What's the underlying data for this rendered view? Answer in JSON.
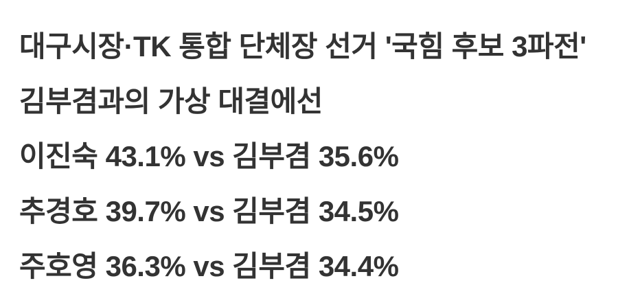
{
  "page": {
    "background_color": "#ffffff",
    "text_color": "#333333"
  },
  "document": {
    "title_line": "대구시장·TK 통합 단체장 선거 '국힘 후보 3파전'",
    "subtitle_line": "김부겸과의 가상 대결에선",
    "matchups": [
      {
        "candidate": "이진숙",
        "candidate_pct": "43.1%",
        "vs_label": "vs",
        "opponent": "김부겸",
        "opponent_pct": "35.6%",
        "text": "이진숙 43.1% vs 김부겸 35.6%"
      },
      {
        "candidate": "추경호",
        "candidate_pct": "39.7%",
        "vs_label": "vs",
        "opponent": "김부겸",
        "opponent_pct": "34.5%",
        "text": "추경호 39.7% vs 김부겸 34.5%"
      },
      {
        "candidate": "주호영",
        "candidate_pct": "36.3%",
        "vs_label": "vs",
        "opponent": "김부겸",
        "opponent_pct": "34.4%",
        "text": "주호영 36.3% vs 김부겸 34.4%"
      }
    ]
  }
}
